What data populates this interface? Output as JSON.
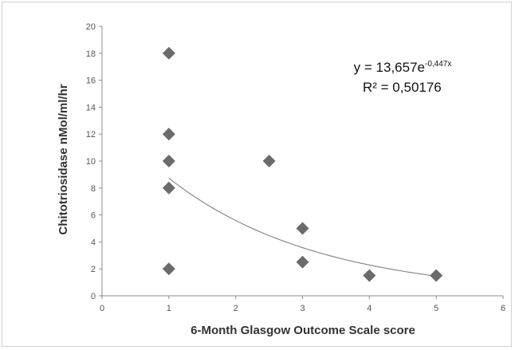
{
  "chart_data": {
    "type": "scatter",
    "xlabel": "6-Month Glasgow Outcome Scale score",
    "ylabel": "Chitotriosidase nMol/ml/hr",
    "xlim": [
      0,
      6
    ],
    "ylim": [
      0,
      20
    ],
    "x_ticks": [
      "0",
      "1",
      "2",
      "3",
      "4",
      "5",
      "6"
    ],
    "y_ticks": [
      "0",
      "2",
      "4",
      "6",
      "8",
      "10",
      "12",
      "14",
      "16",
      "18",
      "20"
    ],
    "points": [
      {
        "x": 1,
        "y": 18
      },
      {
        "x": 1,
        "y": 12
      },
      {
        "x": 1,
        "y": 10
      },
      {
        "x": 1,
        "y": 8
      },
      {
        "x": 1,
        "y": 2
      },
      {
        "x": 2.5,
        "y": 10
      },
      {
        "x": 3,
        "y": 5
      },
      {
        "x": 3,
        "y": 2.5
      },
      {
        "x": 4,
        "y": 1.5
      },
      {
        "x": 5,
        "y": 1.5
      }
    ],
    "marker_color": "#6b6b6b",
    "trendline": {
      "type": "exponential",
      "a": 13.657,
      "b": -0.447,
      "x_range": [
        1,
        5
      ],
      "color": "#8a8a8a"
    },
    "equation": {
      "prefix": "y = 13,657e",
      "exponent": "-0,447x",
      "r_squared": "R² = 0,50176"
    },
    "grid": false,
    "legend": "none"
  }
}
